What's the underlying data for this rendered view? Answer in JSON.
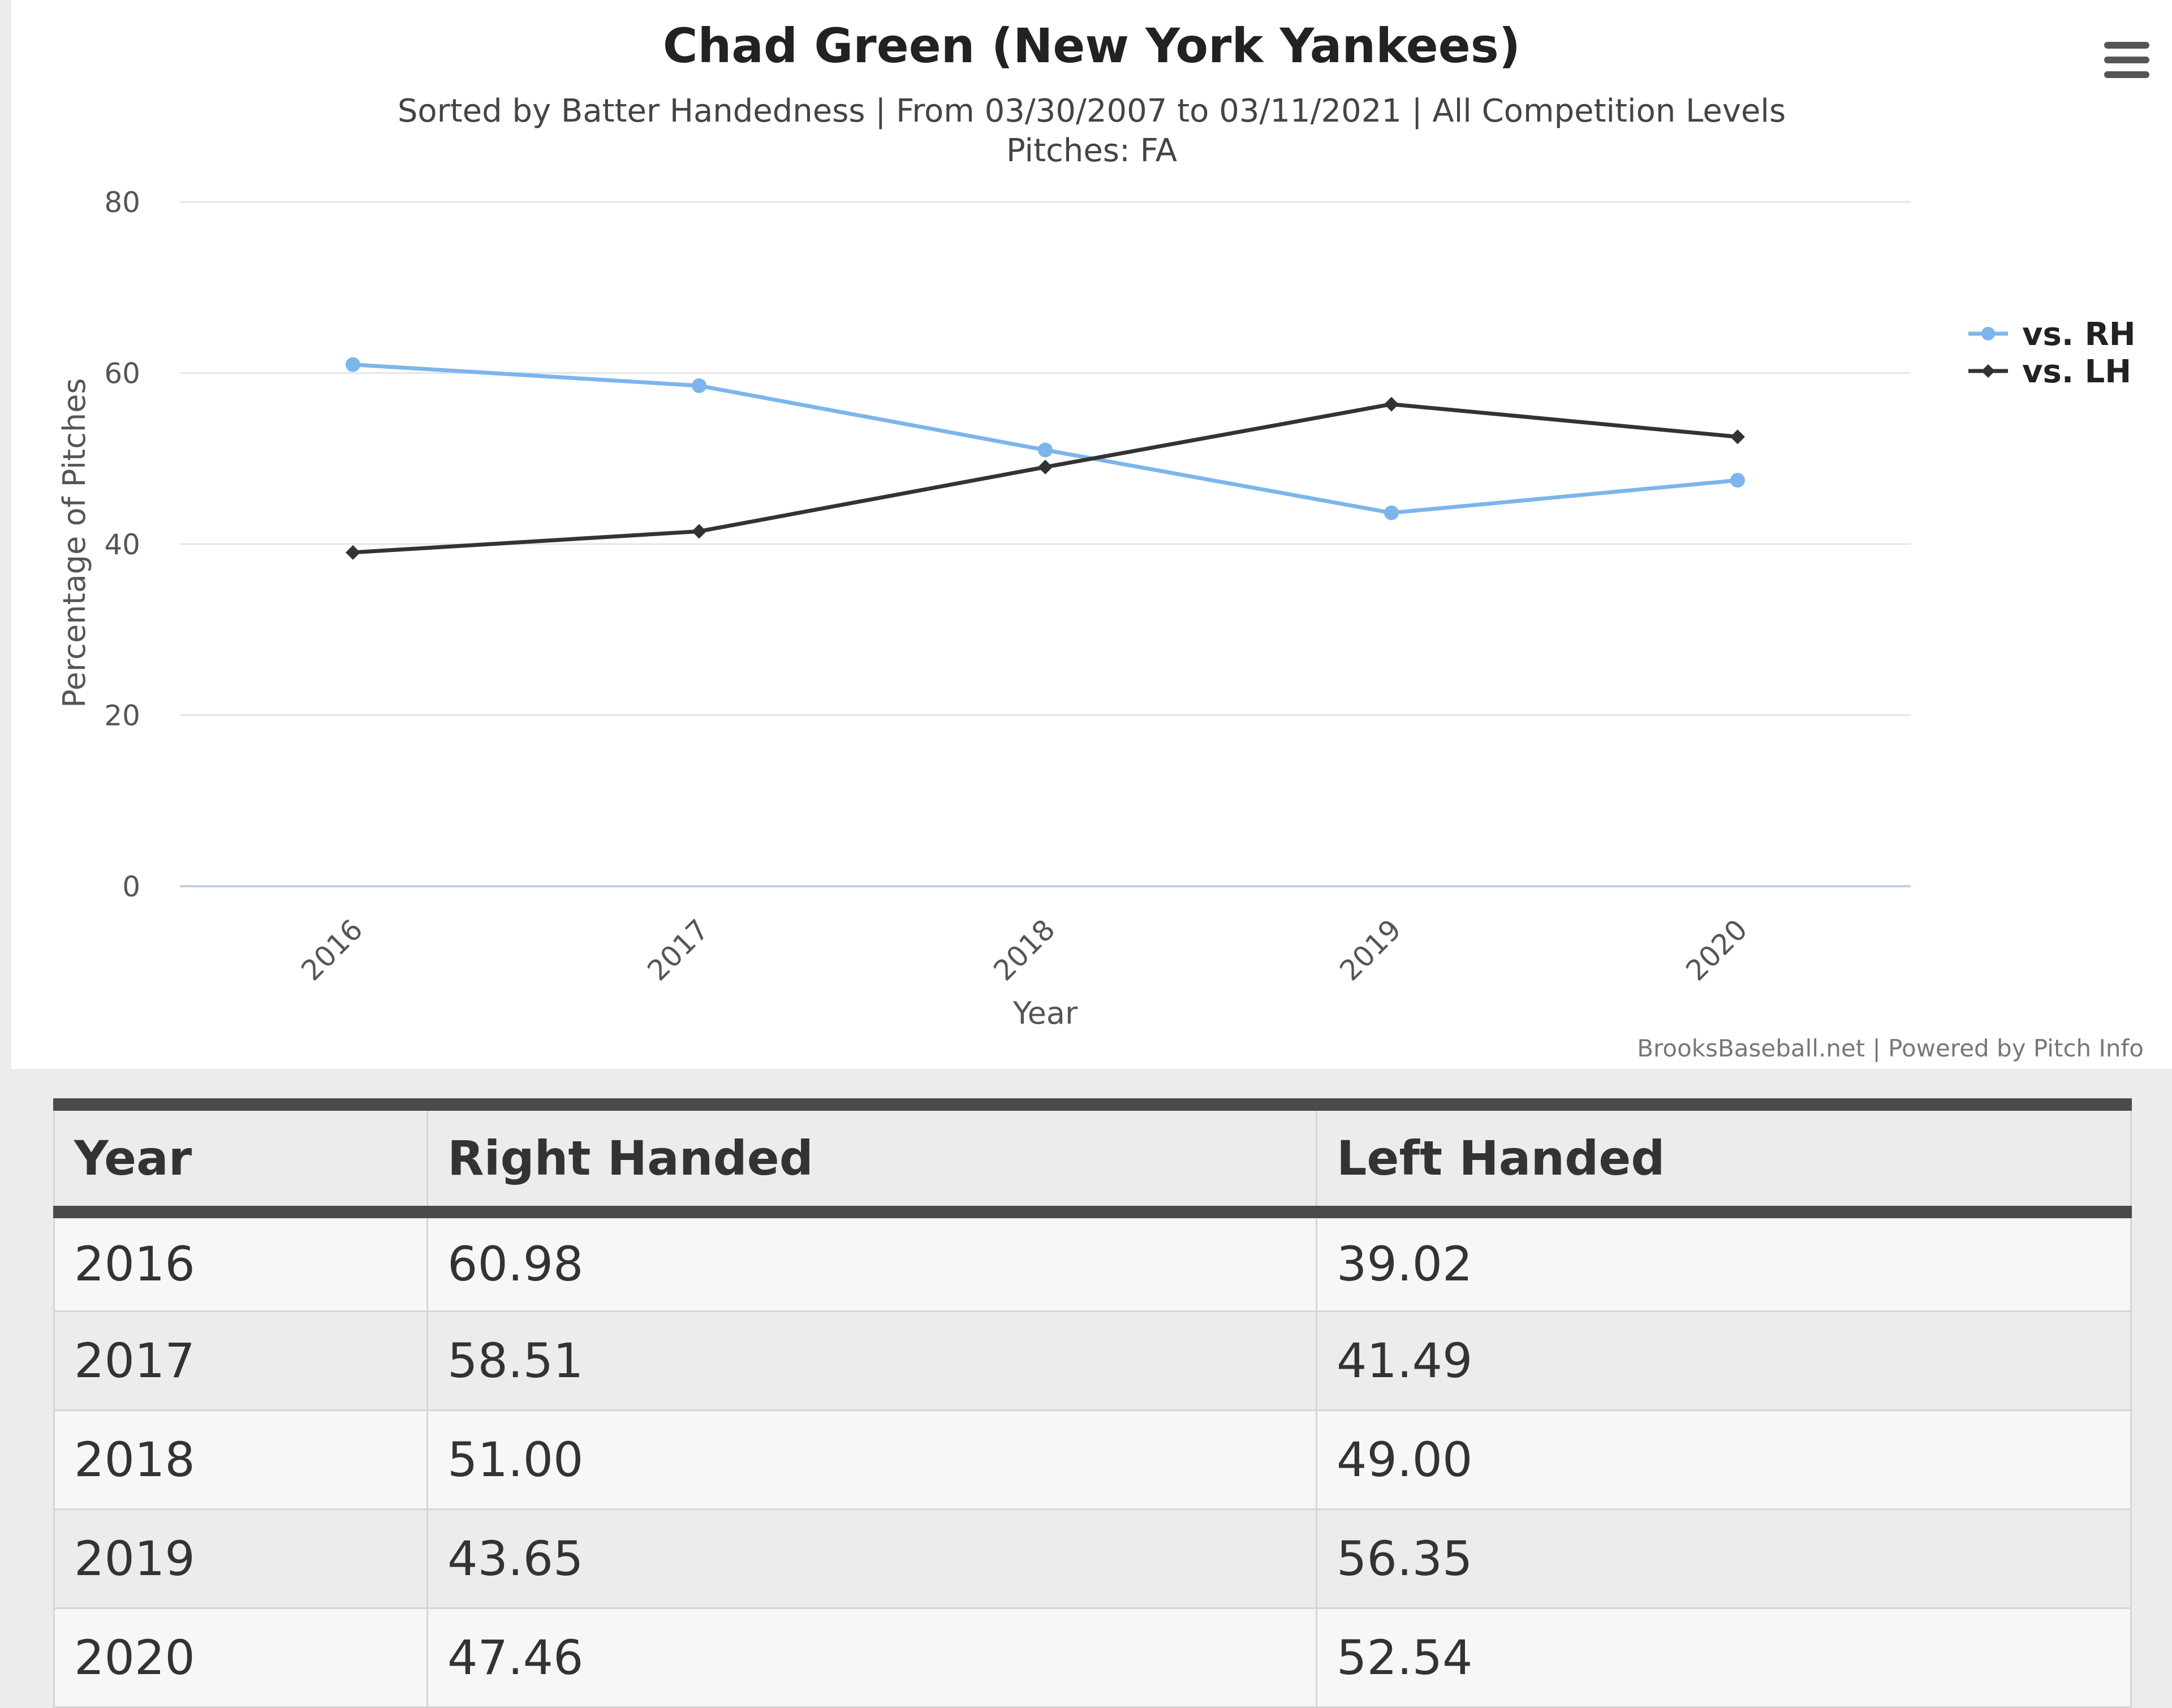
{
  "chart_data": {
    "type": "line",
    "title": "Chad Green (New York Yankees)",
    "subtitle_line1": "Sorted by Batter Handedness | From 03/30/2007 to 03/11/2021 | All Competition Levels",
    "subtitle_line2": "Pitches: FA",
    "xlabel": "Year",
    "ylabel": "Percentage of Pitches",
    "categories": [
      "2016",
      "2017",
      "2018",
      "2019",
      "2020"
    ],
    "y_ticks": [
      "0",
      "20",
      "40",
      "60",
      "80"
    ],
    "ylim": [
      0,
      80
    ],
    "grid": true,
    "legend_position": "right",
    "series": [
      {
        "name": "vs. RH",
        "color": "#7cb5ec",
        "marker": "circle",
        "values": [
          60.98,
          58.51,
          51.0,
          43.65,
          47.46
        ]
      },
      {
        "name": "vs. LH",
        "color": "#333333",
        "marker": "diamond",
        "values": [
          39.02,
          41.49,
          49.0,
          56.35,
          52.54
        ]
      }
    ],
    "credits": "BrooksBaseball.net | Powered by Pitch Info"
  },
  "menu_icon": "hamburger-menu-icon",
  "table": {
    "headers": [
      "Year",
      "Right Handed",
      "Left Handed"
    ],
    "rows": [
      [
        "2016",
        "60.98",
        "39.02"
      ],
      [
        "2017",
        "58.51",
        "41.49"
      ],
      [
        "2018",
        "51.00",
        "49.00"
      ],
      [
        "2019",
        "43.65",
        "56.35"
      ],
      [
        "2020",
        "47.46",
        "52.54"
      ]
    ]
  }
}
